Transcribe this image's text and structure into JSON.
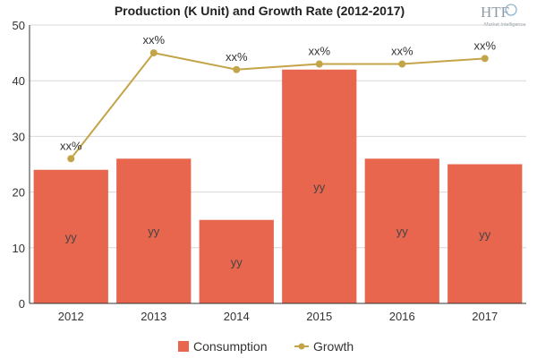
{
  "colors": {
    "consumption": "#e8664e",
    "growth": "#c4a448",
    "grid": "#d8d8d8",
    "axis": "#333333"
  },
  "logo": {
    "mark": "HTF",
    "tagline": "Market Intelligence"
  },
  "chart_data": {
    "type": "bar",
    "title": "Production (K Unit) and Growth Rate (2012-2017)",
    "xlabel": "",
    "ylabel": "",
    "categories": [
      "2012",
      "2013",
      "2014",
      "2015",
      "2016",
      "2017"
    ],
    "ylim": [
      0,
      50
    ],
    "yticks": [
      0,
      10,
      20,
      30,
      40,
      50
    ],
    "grid": true,
    "legend_position": "bottom",
    "series": [
      {
        "name": "Consumption",
        "type": "bar",
        "values": [
          24,
          26,
          15,
          42,
          26,
          25
        ],
        "labels": [
          "yy",
          "yy",
          "yy",
          "yy",
          "yy",
          "yy"
        ]
      },
      {
        "name": "Growth",
        "type": "line",
        "values": [
          26,
          45,
          42,
          43,
          43,
          44
        ],
        "labels": [
          "xx%",
          "xx%",
          "xx%",
          "xx%",
          "xx%",
          "xx%"
        ]
      }
    ]
  }
}
